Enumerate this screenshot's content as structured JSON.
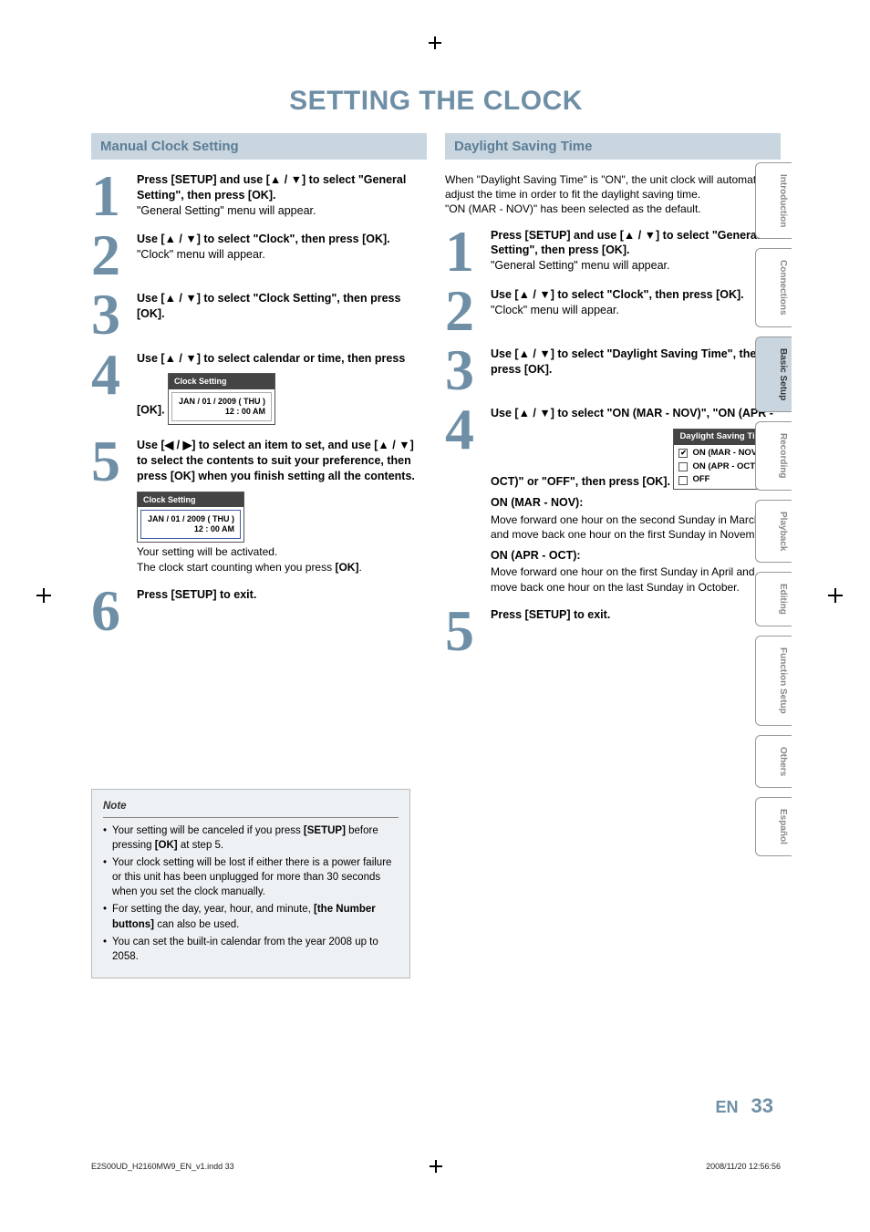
{
  "title": "SETTING THE CLOCK",
  "colors": {
    "accent": "#6e8fa6",
    "bar_bg": "#c9d6e0",
    "bar_text": "#5c7d96",
    "note_bg": "#eef1f4"
  },
  "left": {
    "bar": "Manual Clock Setting",
    "steps": [
      {
        "num": "1",
        "bold": "Press [SETUP] and use [▲ / ▼] to select \"General Setting\", then press [OK].",
        "reg": "\"General Setting\" menu will appear."
      },
      {
        "num": "2",
        "bold": "Use [▲ / ▼] to select \"Clock\", then press [OK].",
        "reg": "\"Clock\" menu will appear."
      },
      {
        "num": "3",
        "bold": "Use [▲ / ▼] to select \"Clock Setting\", then press [OK].",
        "reg": ""
      },
      {
        "num": "4",
        "bold": "Use [▲ / ▼] to select calendar or time, then press [OK].",
        "reg": "",
        "uibox": {
          "header": "Clock Setting",
          "line1": "JAN / 01 / 2009 ( THU )",
          "line2": "12 : 00  AM",
          "sel": false
        }
      },
      {
        "num": "5",
        "bold": "Use [◀ / ▶] to select an item to set, and use [▲ / ▼] to select the contents to suit your preference, then press [OK] when you finish setting all the contents.",
        "reg_after_box": "Your setting will be activated.\nThe clock start counting when you press [OK].",
        "uibox": {
          "header": "Clock Setting",
          "line1": "JAN / 01 / 2009 ( THU )",
          "line2": "12 : 00  AM",
          "sel": true
        }
      },
      {
        "num": "6",
        "bold": "Press [SETUP] to exit.",
        "reg": ""
      }
    ],
    "note": {
      "title": "Note",
      "items": [
        "Your setting will be canceled if you press [SETUP] before pressing [OK] at step 5.",
        "Your clock setting will be lost if either there is a power failure or this unit has been unplugged for more than 30 seconds when you set the clock manually.",
        "For setting the day, year, hour, and minute, [the Number buttons] can also be used.",
        "You can set the built-in calendar from the year 2008 up to 2058."
      ]
    }
  },
  "right": {
    "bar": "Daylight Saving Time",
    "intro": "When \"Daylight Saving Time\" is \"ON\", the unit clock will automatically adjust the time in order to fit the daylight saving time.\n\"ON (MAR - NOV)\" has been selected as the default.",
    "steps": [
      {
        "num": "1",
        "bold": "Press [SETUP] and use [▲ / ▼] to select \"General Setting\", then press [OK].",
        "reg": "\"General Setting\" menu will appear."
      },
      {
        "num": "2",
        "bold": "Use [▲ / ▼] to select \"Clock\", then press [OK].",
        "reg": "\"Clock\" menu will appear."
      },
      {
        "num": "3",
        "bold": "Use [▲ / ▼] to select \"Daylight Saving Time\", then press [OK].",
        "reg": ""
      },
      {
        "num": "4",
        "bold": "Use [▲ / ▼] to select \"ON (MAR - NOV)\", \"ON (APR - OCT)\" or \"OFF\", then press [OK].",
        "dst": {
          "header": "Daylight Saving Time",
          "options": [
            {
              "label": "ON (MAR - NOV)",
              "checked": true
            },
            {
              "label": "ON (APR - OCT)",
              "checked": false
            },
            {
              "label": "OFF",
              "checked": false
            }
          ]
        },
        "explain": [
          {
            "head": "ON (MAR - NOV):",
            "body": "Move forward one hour on the second Sunday in March and move back one hour on the first Sunday in November."
          },
          {
            "head": "ON (APR - OCT):",
            "body": "Move forward one hour on the first Sunday in April and move back one hour on the last Sunday in October."
          }
        ]
      },
      {
        "num": "5",
        "bold": "Press [SETUP] to exit.",
        "reg": ""
      }
    ]
  },
  "tabs": [
    {
      "label": "Introduction",
      "active": false
    },
    {
      "label": "Connections",
      "active": false
    },
    {
      "label": "Basic Setup",
      "active": true
    },
    {
      "label": "Recording",
      "active": false
    },
    {
      "label": "Playback",
      "active": false
    },
    {
      "label": "Editing",
      "active": false
    },
    {
      "label": "Function Setup",
      "active": false
    },
    {
      "label": "Others",
      "active": false
    },
    {
      "label": "Español",
      "active": false
    }
  ],
  "footer": {
    "en": "EN",
    "page": "33",
    "meta_left": "E2S00UD_H2160MW9_EN_v1.indd   33",
    "meta_right": "2008/11/20   12:56:56"
  }
}
